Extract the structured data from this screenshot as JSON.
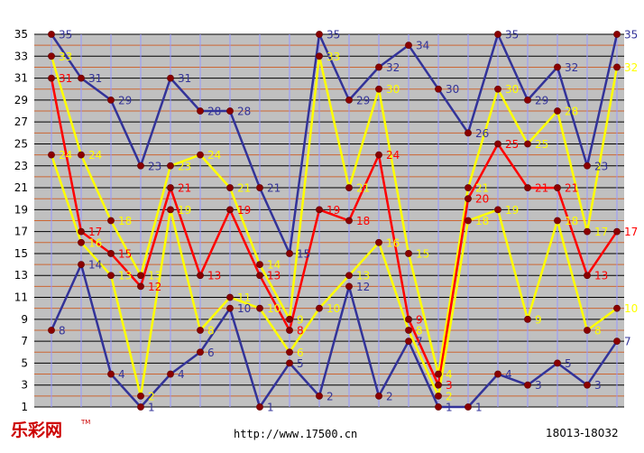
{
  "footer": {
    "brand": "乐彩网",
    "trademark": "TM",
    "url": "http://www.17500.cn",
    "range": "18013-18032"
  },
  "chart_data": {
    "type": "line",
    "ylim": [
      1,
      35
    ],
    "yticks": [
      1,
      3,
      5,
      7,
      9,
      11,
      13,
      15,
      17,
      19,
      21,
      23,
      25,
      27,
      29,
      31,
      33,
      35
    ],
    "grid": true,
    "background": "#c0c0c0",
    "colors": {
      "odd_grid": "#000000",
      "even_grid": "#cc6633",
      "vertical_grid": "#9999ff",
      "marker": "#8b0000"
    },
    "series": [
      {
        "color": "#333399",
        "label_color": "#333399",
        "values": [
          35,
          31,
          29,
          23,
          31,
          28,
          28,
          21,
          15,
          35,
          29,
          32,
          34,
          30,
          26,
          35,
          29,
          32,
          23,
          35
        ]
      },
      {
        "color": "#ffff00",
        "label_color": "#ffff00",
        "values": [
          33,
          24,
          18,
          13,
          23,
          24,
          21,
          14,
          9,
          33,
          21,
          30,
          15,
          4,
          21,
          30,
          25,
          28,
          17,
          32
        ]
      },
      {
        "color": "#ff0000",
        "label_color": "#ff0000",
        "values": [
          31,
          17,
          15,
          12,
          21,
          13,
          19,
          13,
          8,
          19,
          18,
          24,
          9,
          3,
          20,
          25,
          21,
          21,
          13,
          17
        ]
      },
      {
        "color": "#ffff00",
        "label_color": "#ffff00",
        "values": [
          24,
          16,
          13,
          2,
          19,
          8,
          11,
          10,
          6,
          10,
          13,
          16,
          8,
          2,
          18,
          19,
          9,
          18,
          8,
          10
        ]
      },
      {
        "color": "#333399",
        "label_color": "#333399",
        "values": [
          8,
          14,
          4,
          1,
          4,
          6,
          10,
          1,
          5,
          2,
          12,
          2,
          7,
          1,
          1,
          4,
          3,
          5,
          3,
          7
        ]
      }
    ]
  }
}
